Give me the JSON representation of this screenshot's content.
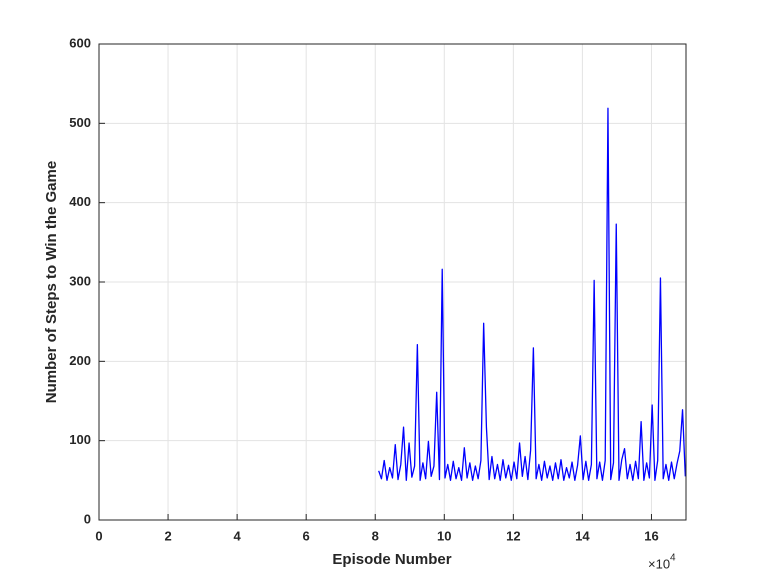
{
  "chart_data": {
    "type": "line",
    "xlabel": "Episode Number",
    "ylabel": "Number of Steps to Win the Game",
    "x_multiplier_label": "×10",
    "x_multiplier_exponent": "4",
    "xlim": [
      0,
      17
    ],
    "ylim": [
      0,
      600
    ],
    "xticks": [
      0,
      2,
      4,
      6,
      8,
      10,
      12,
      14,
      16
    ],
    "yticks": [
      0,
      100,
      200,
      300,
      400,
      500,
      600
    ],
    "grid": true,
    "series": [
      {
        "color": "#0000ff",
        "x": [
          8.1,
          8.18,
          8.26,
          8.34,
          8.42,
          8.5,
          8.58,
          8.66,
          8.74,
          8.82,
          8.9,
          8.98,
          9.06,
          9.14,
          9.22,
          9.3,
          9.38,
          9.46,
          9.54,
          9.62,
          9.7,
          9.78,
          9.86,
          9.94,
          10.02,
          10.1,
          10.18,
          10.26,
          10.34,
          10.42,
          10.5,
          10.58,
          10.66,
          10.74,
          10.82,
          10.9,
          10.98,
          11.06,
          11.14,
          11.22,
          11.3,
          11.38,
          11.46,
          11.54,
          11.62,
          11.7,
          11.78,
          11.86,
          11.94,
          12.02,
          12.1,
          12.18,
          12.26,
          12.34,
          12.42,
          12.5,
          12.58,
          12.66,
          12.74,
          12.82,
          12.9,
          12.98,
          13.06,
          13.14,
          13.22,
          13.3,
          13.38,
          13.46,
          13.54,
          13.62,
          13.7,
          13.78,
          13.86,
          13.94,
          14.02,
          14.1,
          14.18,
          14.26,
          14.34,
          14.42,
          14.5,
          14.58,
          14.66,
          14.74,
          14.82,
          14.9,
          14.98,
          15.06,
          15.14,
          15.22,
          15.3,
          15.38,
          15.46,
          15.54,
          15.62,
          15.7,
          15.78,
          15.86,
          15.94,
          16.02,
          16.1,
          16.18,
          16.26,
          16.34,
          16.42,
          16.5,
          16.58,
          16.66,
          16.74,
          16.82,
          16.9,
          16.98
        ],
        "values": [
          62,
          52,
          75,
          50,
          66,
          53,
          95,
          51,
          70,
          117,
          50,
          97,
          54,
          68,
          221,
          50,
          72,
          52,
          99,
          55,
          68,
          161,
          51,
          316,
          53,
          70,
          50,
          74,
          52,
          66,
          50,
          91,
          53,
          72,
          50,
          68,
          52,
          75,
          248,
          117,
          51,
          80,
          52,
          70,
          50,
          76,
          53,
          69,
          50,
          73,
          52,
          97,
          55,
          80,
          51,
          88,
          217,
          52,
          70,
          50,
          74,
          53,
          68,
          50,
          72,
          52,
          76,
          50,
          66,
          53,
          73,
          50,
          69,
          106,
          51,
          74,
          50,
          70,
          302,
          52,
          73,
          50,
          75,
          519,
          51,
          72,
          373,
          50,
          76,
          90,
          52,
          70,
          50,
          74,
          52,
          124,
          50,
          72,
          53,
          145,
          50,
          75,
          305,
          52,
          70,
          50,
          73,
          52,
          71,
          87,
          139,
          55
        ]
      }
    ]
  }
}
